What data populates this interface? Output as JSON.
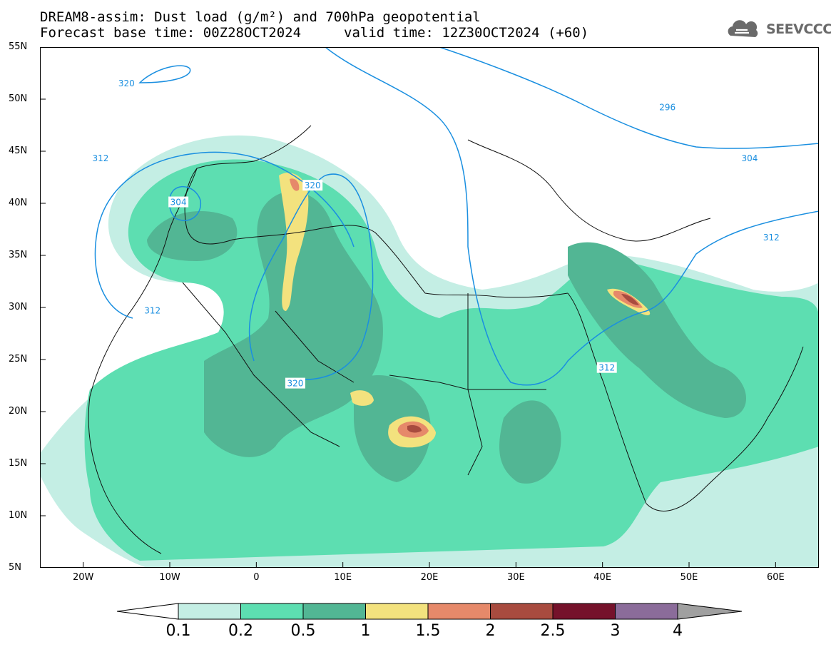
{
  "header": {
    "title_line1": "DREAM8-assim: Dust load (g/m²) and 700hPa geopotential",
    "title_line2_base": "Forecast base time: 00Z28OCT2024",
    "title_line2_valid": "valid time: 12Z30OCT2024 (+60)"
  },
  "logo": {
    "text": "SEEVCCC",
    "icon": "cloud-icon"
  },
  "map": {
    "projection": "lat-lon",
    "lon_range": [
      -25,
      65
    ],
    "lat_range": [
      5,
      55
    ],
    "lon_ticks": [
      "20W",
      "10W",
      "0",
      "10E",
      "20E",
      "30E",
      "40E",
      "50E",
      "60E"
    ],
    "lat_ticks": [
      "55N",
      "50N",
      "45N",
      "40N",
      "35N",
      "30N",
      "25N",
      "20N",
      "15N",
      "10N",
      "5N"
    ],
    "contour_labels": [
      {
        "text": "320",
        "lon": -15,
        "lat": 51.5
      },
      {
        "text": "312",
        "lon": -18,
        "lat": 44.3
      },
      {
        "text": "304",
        "lon": -9,
        "lat": 40.1
      },
      {
        "text": "320",
        "lon": 6.5,
        "lat": 41.7
      },
      {
        "text": "312",
        "lon": -12,
        "lat": 29.7
      },
      {
        "text": "320",
        "lon": 4.5,
        "lat": 22.7
      },
      {
        "text": "296",
        "lon": 47.5,
        "lat": 49.2
      },
      {
        "text": "304",
        "lon": 57,
        "lat": 44.3
      },
      {
        "text": "312",
        "lon": 59.5,
        "lat": 36.7
      },
      {
        "text": "312",
        "lon": 40.5,
        "lat": 24.2
      }
    ]
  },
  "colorbar": {
    "levels": [
      "0.1",
      "0.2",
      "0.5",
      "1",
      "1.5",
      "2",
      "2.5",
      "3",
      "4"
    ],
    "colors": [
      "#c4eee4",
      "#5ddeb1",
      "#52b694",
      "#f3e27e",
      "#e6896a",
      "#a84b3f",
      "#75122b",
      "#8b6c9a"
    ],
    "low_color": "#ffffff",
    "high_color": "#a0a0a0"
  }
}
